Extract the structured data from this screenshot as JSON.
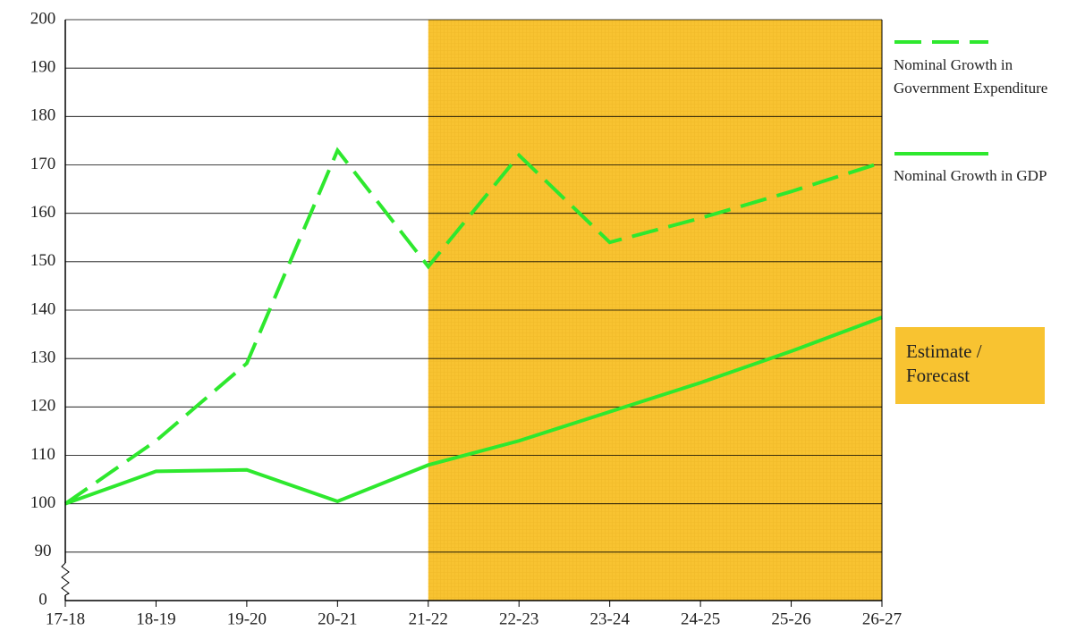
{
  "chart_data": {
    "type": "line",
    "categories": [
      "17-18",
      "18-19",
      "19-20",
      "20-21",
      "21-22",
      "22-23",
      "23-24",
      "24-25",
      "25-26",
      "26-27"
    ],
    "series": [
      {
        "name": "Nominal Growth in Government Expenditure",
        "color": "#2ee82e",
        "line_style": "dashed",
        "values": [
          100,
          113,
          129,
          173,
          149,
          172,
          154,
          159,
          164.5,
          170.5
        ]
      },
      {
        "name": "Nominal Growth in GDP",
        "color": "#2ee82e",
        "line_style": "solid",
        "values": [
          100,
          106.7,
          107,
          100.5,
          108,
          113,
          119,
          125,
          131.5,
          138.5
        ]
      }
    ],
    "ylim": [
      0,
      200
    ],
    "yticks": [
      0,
      90,
      100,
      110,
      120,
      130,
      140,
      150,
      160,
      170,
      180,
      190,
      200
    ],
    "y_axis_break": true,
    "grid": true,
    "forecast_start": "21-22",
    "forecast_label": "Estimate / Forecast",
    "forecast_color": "#f8c331"
  }
}
